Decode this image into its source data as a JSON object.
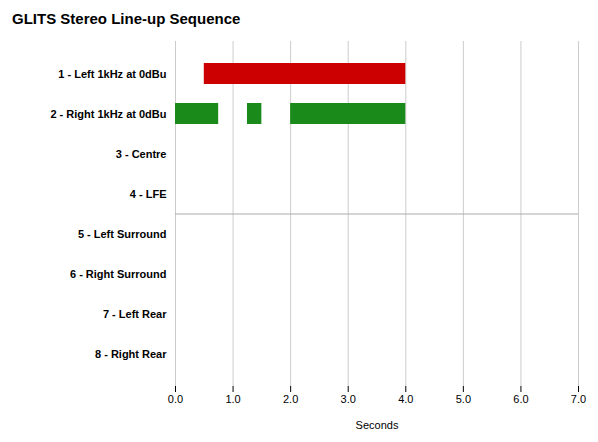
{
  "chart_data": {
    "type": "timeline",
    "title": "GLITS Stereo Line-up Sequence",
    "orientation": "horizontal",
    "categories": [
      "8 - Right Rear",
      "7 - Left Rear",
      "6 - Right Surround",
      "5 - Left Surround",
      "4 - LFE",
      "3 - Centre",
      "2 - Right 1kHz at 0dBu",
      "1 - Left 1kHz at 0dBu"
    ],
    "bars": [
      {
        "category": "1 - Left 1kHz at 0dBu",
        "color": "#cc0000",
        "segments": [
          {
            "start": 0.5,
            "end": 4.0
          }
        ]
      },
      {
        "category": "2 - Right 1kHz at 0dBu",
        "color": "#1a8a1a",
        "segments": [
          {
            "start": 0.0,
            "end": 0.75
          },
          {
            "start": 1.25,
            "end": 1.5
          },
          {
            "start": 2.0,
            "end": 4.0
          }
        ]
      }
    ],
    "xlabel": "Seconds",
    "xlim": [
      0,
      7
    ],
    "xticks": [
      0,
      1,
      2,
      3,
      4,
      5,
      6,
      7
    ],
    "grid": true
  }
}
